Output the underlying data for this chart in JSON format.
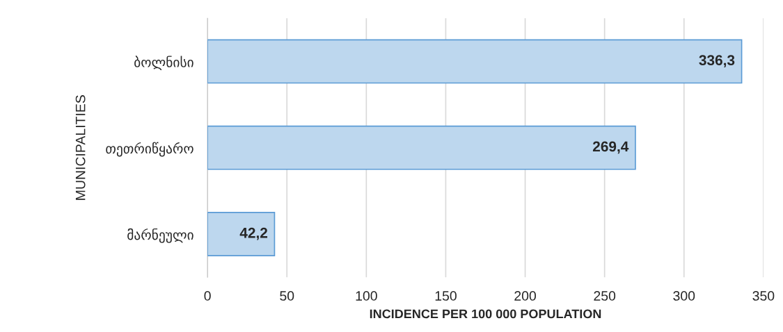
{
  "chart_data": {
    "type": "bar",
    "orientation": "horizontal",
    "xlabel": "INCIDENCE PER 100 000 POPULATION",
    "ylabel": "MUNICIPALITIES",
    "categories": [
      "ბოლნისი",
      "თეთრიწყარო",
      "მარნეული"
    ],
    "values": [
      336.3,
      269.4,
      42.2
    ],
    "value_labels": [
      "336,3",
      "269,4",
      "42,2"
    ],
    "color": "#bdd7ee",
    "xlim": [
      0,
      350
    ],
    "xticks": [
      0,
      50,
      100,
      150,
      200,
      250,
      300,
      350
    ],
    "grid": "x",
    "legend": false
  }
}
